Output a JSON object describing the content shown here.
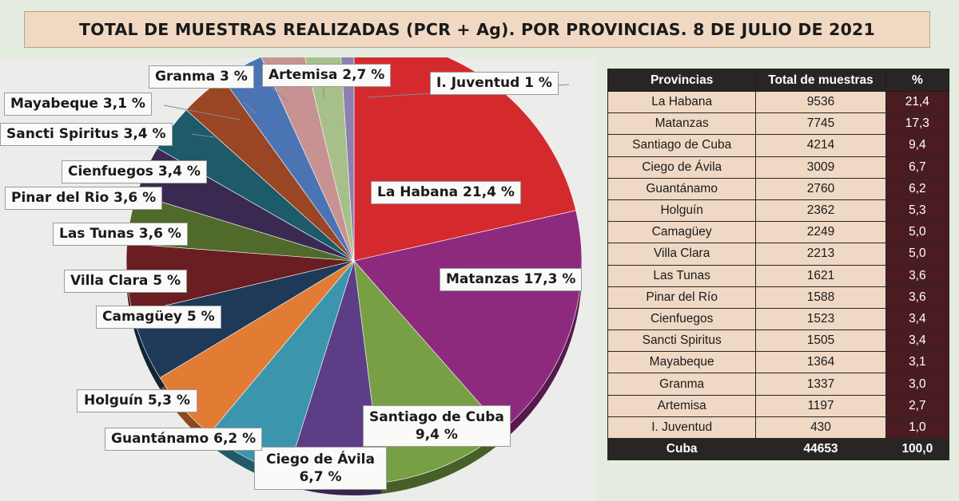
{
  "title": "TOTAL DE MUESTRAS REALIZADAS (PCR + Ag). POR PROVINCIAS. 8 DE JULIO DE 2021",
  "table": {
    "headers": [
      "Provincias",
      "Total de muestras",
      "%"
    ],
    "rows": [
      [
        "La Habana",
        "9536",
        "21,4"
      ],
      [
        "Matanzas",
        "7745",
        "17,3"
      ],
      [
        "Santiago de Cuba",
        "4214",
        "9,4"
      ],
      [
        "Ciego de Ávila",
        "3009",
        "6,7"
      ],
      [
        "Guantánamo",
        "2760",
        "6,2"
      ],
      [
        "Holguín",
        "2362",
        "5,3"
      ],
      [
        "Camagüey",
        "2249",
        "5,0"
      ],
      [
        "Villa Clara",
        "2213",
        "5,0"
      ],
      [
        "Las Tunas",
        "1621",
        "3,6"
      ],
      [
        "Pinar del Río",
        "1588",
        "3,6"
      ],
      [
        "Cienfuegos",
        "1523",
        "3,4"
      ],
      [
        "Sancti Spiritus",
        "1505",
        "3,4"
      ],
      [
        "Mayabeque",
        "1364",
        "3,1"
      ],
      [
        "Granma",
        "1337",
        "3,0"
      ],
      [
        "Artemisa",
        "1197",
        "2,7"
      ],
      [
        "I. Juventud",
        "430",
        "1,0"
      ]
    ],
    "total": [
      "Cuba",
      "44653",
      "100,0"
    ]
  },
  "chart_data": {
    "type": "pie",
    "title": "TOTAL DE MUESTRAS REALIZADAS (PCR + Ag). POR PROVINCIAS. 8 DE JULIO DE 2021",
    "slices": [
      {
        "name": "La Habana",
        "value": 21.4,
        "label": "La Habana 21,4 %",
        "color": "#d42a2e"
      },
      {
        "name": "Matanzas",
        "value": 17.3,
        "label": "Matanzas 17,3 %",
        "color": "#8e2a7e"
      },
      {
        "name": "Santiago de Cuba",
        "value": 9.4,
        "label": "Santiago de Cuba 9,4 %",
        "color": "#76a043"
      },
      {
        "name": "Ciego de Ávila",
        "value": 6.7,
        "label": "Ciego de Ávila 6,7 %",
        "color": "#5c3d86"
      },
      {
        "name": "Guantánamo",
        "value": 6.2,
        "label": "Guantánamo 6,2 %",
        "color": "#3b96ad"
      },
      {
        "name": "Holguín",
        "value": 5.3,
        "label": "Holguín 5,3 %",
        "color": "#e27b34"
      },
      {
        "name": "Camagüey",
        "value": 5.0,
        "label": "Camagüey 5 %",
        "color": "#1e3a58"
      },
      {
        "name": "Villa Clara",
        "value": 5.0,
        "label": "Villa Clara 5 %",
        "color": "#6a1e22"
      },
      {
        "name": "Las Tunas",
        "value": 3.6,
        "label": "Las Tunas 3,6 %",
        "color": "#4f6a2b"
      },
      {
        "name": "Pinar del Río",
        "value": 3.6,
        "label": "Pinar del Rio 3,6 %",
        "color": "#3a2a52"
      },
      {
        "name": "Cienfuegos",
        "value": 3.4,
        "label": "Cienfuegos 3,4 %",
        "color": "#1d5a6a"
      },
      {
        "name": "Sancti Spiritus",
        "value": 3.4,
        "label": "Sancti Spiritus 3,4 %",
        "color": "#9a4524"
      },
      {
        "name": "Mayabeque",
        "value": 3.1,
        "label": "Mayabeque 3,1 %",
        "color": "#4a74b4"
      },
      {
        "name": "Granma",
        "value": 3.0,
        "label": "Granma 3 %",
        "color": "#c89292"
      },
      {
        "name": "Artemisa",
        "value": 2.7,
        "label": "Artemisa 2,7 %",
        "color": "#a7c08a"
      },
      {
        "name": "I. Juventud",
        "value": 1.0,
        "label": "I. Juventud 1 %",
        "color": "#8d7fb2"
      }
    ]
  }
}
